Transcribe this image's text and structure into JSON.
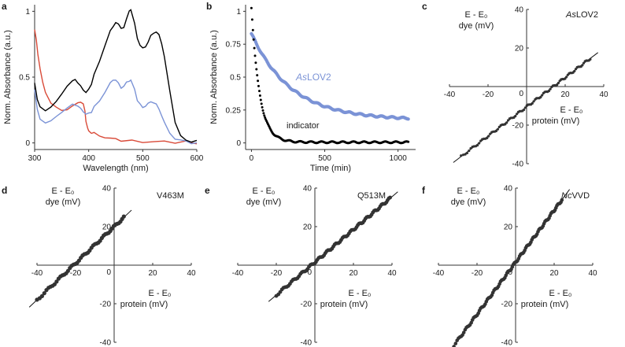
{
  "chart_data": [
    {
      "panel": "a",
      "type": "line",
      "xlabel": "Wavelength (nm)",
      "ylabel": "Norm. Absorbance (a.u.)",
      "xlim": [
        300,
        600
      ],
      "ylim": [
        -0.05,
        1.05
      ],
      "xticks": [
        "300",
        "400",
        "500",
        "600"
      ],
      "yticks": [
        "0",
        "0.5",
        "1"
      ],
      "series": [
        {
          "name": "black",
          "color": "#000000",
          "x": [
            300,
            305,
            310,
            320,
            330,
            340,
            350,
            360,
            370,
            375,
            380,
            385,
            390,
            395,
            400,
            405,
            410,
            420,
            430,
            440,
            445,
            450,
            455,
            460,
            465,
            470,
            475,
            478,
            480,
            485,
            490,
            495,
            500,
            505,
            510,
            515,
            520,
            525,
            530,
            535,
            540,
            550,
            560,
            570,
            580,
            590,
            600
          ],
          "y": [
            0.45,
            0.33,
            0.28,
            0.25,
            0.27,
            0.32,
            0.38,
            0.43,
            0.47,
            0.48,
            0.46,
            0.43,
            0.4,
            0.39,
            0.4,
            0.45,
            0.52,
            0.62,
            0.73,
            0.85,
            0.88,
            0.92,
            0.9,
            0.87,
            0.88,
            0.94,
            1.0,
            1.01,
            0.99,
            0.9,
            0.8,
            0.74,
            0.72,
            0.73,
            0.77,
            0.81,
            0.84,
            0.84,
            0.82,
            0.76,
            0.65,
            0.4,
            0.15,
            0.04,
            0.02,
            0.01,
            0.01
          ]
        },
        {
          "name": "blue",
          "color": "#7b93d6",
          "x": [
            300,
            305,
            310,
            320,
            330,
            340,
            350,
            360,
            370,
            375,
            380,
            385,
            390,
            395,
            400,
            405,
            410,
            420,
            430,
            440,
            445,
            450,
            455,
            460,
            465,
            470,
            475,
            478,
            480,
            485,
            490,
            495,
            500,
            505,
            510,
            515,
            520,
            525,
            530,
            535,
            540,
            550,
            560,
            570,
            580,
            590,
            600
          ],
          "y": [
            0.4,
            0.26,
            0.18,
            0.16,
            0.17,
            0.2,
            0.24,
            0.27,
            0.29,
            0.29,
            0.28,
            0.26,
            0.24,
            0.22,
            0.22,
            0.24,
            0.27,
            0.32,
            0.38,
            0.45,
            0.48,
            0.48,
            0.45,
            0.42,
            0.43,
            0.46,
            0.47,
            0.48,
            0.46,
            0.4,
            0.33,
            0.29,
            0.27,
            0.28,
            0.3,
            0.31,
            0.31,
            0.29,
            0.26,
            0.21,
            0.15,
            0.07,
            0.03,
            0.01,
            0.005,
            0.0,
            0.0
          ]
        },
        {
          "name": "red",
          "color": "#d94a38",
          "x": [
            300,
            303,
            306,
            310,
            315,
            320,
            330,
            340,
            350,
            360,
            370,
            380,
            385,
            390,
            393,
            395,
            398,
            400,
            405,
            410,
            420,
            430,
            440,
            450,
            460,
            480,
            500,
            520,
            540,
            560,
            580,
            590,
            600
          ],
          "y": [
            0.86,
            0.78,
            0.67,
            0.56,
            0.46,
            0.39,
            0.31,
            0.27,
            0.25,
            0.26,
            0.28,
            0.3,
            0.31,
            0.3,
            0.25,
            0.16,
            0.11,
            0.09,
            0.08,
            0.07,
            0.05,
            0.04,
            0.03,
            0.03,
            0.02,
            0.02,
            0.01,
            0.01,
            0.01,
            0.0,
            0.0,
            0.0,
            0.0
          ]
        }
      ]
    },
    {
      "panel": "b",
      "type": "scatter",
      "xlabel": "Time (min)",
      "ylabel": "Norm. Absorbance (a.u.)",
      "xlim": [
        -40,
        1120
      ],
      "ylim": [
        -0.05,
        1.05
      ],
      "xticks": [
        "0",
        "500",
        "1000"
      ],
      "yticks": [
        "0",
        "0.25",
        "0.5",
        "0.75",
        "1"
      ],
      "series": [
        {
          "name": "AsLOV2",
          "color": "#7b93d6",
          "model": "exponential",
          "y0": 0.83,
          "yinf": 0.175,
          "tau_min": 270,
          "x_range": [
            0,
            1070
          ]
        },
        {
          "name": "indicator",
          "color": "#000000",
          "model": "exponential",
          "y0": 1.03,
          "yinf": 0.005,
          "tau_min": 55,
          "x_range": [
            0,
            1070
          ]
        }
      ]
    },
    {
      "panel": "c",
      "type": "scatter",
      "protein": "AsLOV2",
      "protein_italic": "As",
      "protein_rest": "LOV2",
      "x_range": [
        -34,
        33
      ],
      "slope": 0.76,
      "intercept": -10.5,
      "n_points": 90,
      "point_size": 1.6,
      "ticks": [
        {
          "v": -40,
          "t": "-40"
        },
        {
          "v": -20,
          "t": "-20"
        },
        {
          "v": 0,
          "t": "0"
        },
        {
          "v": 20,
          "t": "20"
        },
        {
          "v": 40,
          "t": "40"
        }
      ]
    },
    {
      "panel": "d",
      "type": "scatter",
      "protein": "V463M",
      "protein_italic": "",
      "protein_rest": "V463M",
      "x_range": [
        -40,
        5
      ],
      "slope": 0.95,
      "intercept": 20,
      "n_points": 48,
      "point_size": 2.6,
      "ticks": [
        {
          "v": -40,
          "t": "-40"
        },
        {
          "v": -20,
          "t": "-20"
        },
        {
          "v": 0,
          "t": "0"
        },
        {
          "v": 20,
          "t": "20"
        },
        {
          "v": 40,
          "t": "40"
        }
      ]
    },
    {
      "panel": "e",
      "type": "scatter",
      "protein": "Q513M",
      "protein_italic": "",
      "protein_rest": "Q513M",
      "x_range": [
        -20,
        39
      ],
      "slope": 0.85,
      "intercept": 1.5,
      "n_points": 85,
      "point_size": 2.4,
      "ticks": [
        {
          "v": -40,
          "t": "-40"
        },
        {
          "v": -20,
          "t": "-20"
        },
        {
          "v": 0,
          "t": "0"
        },
        {
          "v": 20,
          "t": "20"
        },
        {
          "v": 40,
          "t": "40"
        }
      ]
    },
    {
      "panel": "f",
      "type": "scatter",
      "protein": "NcVVD",
      "protein_italic": "Nc",
      "protein_rest": "VVD",
      "x_range": [
        -32,
        24
      ],
      "slope": 1.35,
      "intercept": 1.5,
      "n_points": 100,
      "point_size": 2.3,
      "ticks": [
        {
          "v": -40,
          "t": "-40"
        },
        {
          "v": -20,
          "t": "-20"
        },
        {
          "v": 0,
          "t": "0"
        },
        {
          "v": 20,
          "t": "20"
        },
        {
          "v": 40,
          "t": "40"
        }
      ]
    }
  ],
  "labels": {
    "panel_a": "a",
    "panel_b": "b",
    "panel_c": "c",
    "panel_d": "d",
    "panel_e": "e",
    "panel_f": "f",
    "dye_y_line1": "E - E₀",
    "dye_y_line2": "dye (mV)",
    "prot_x_line1": "E - E₀",
    "prot_x_line2": "protein (mV)",
    "aslov2_italic": "As",
    "aslov2_rest": "LOV2",
    "indicator": "indicator"
  }
}
